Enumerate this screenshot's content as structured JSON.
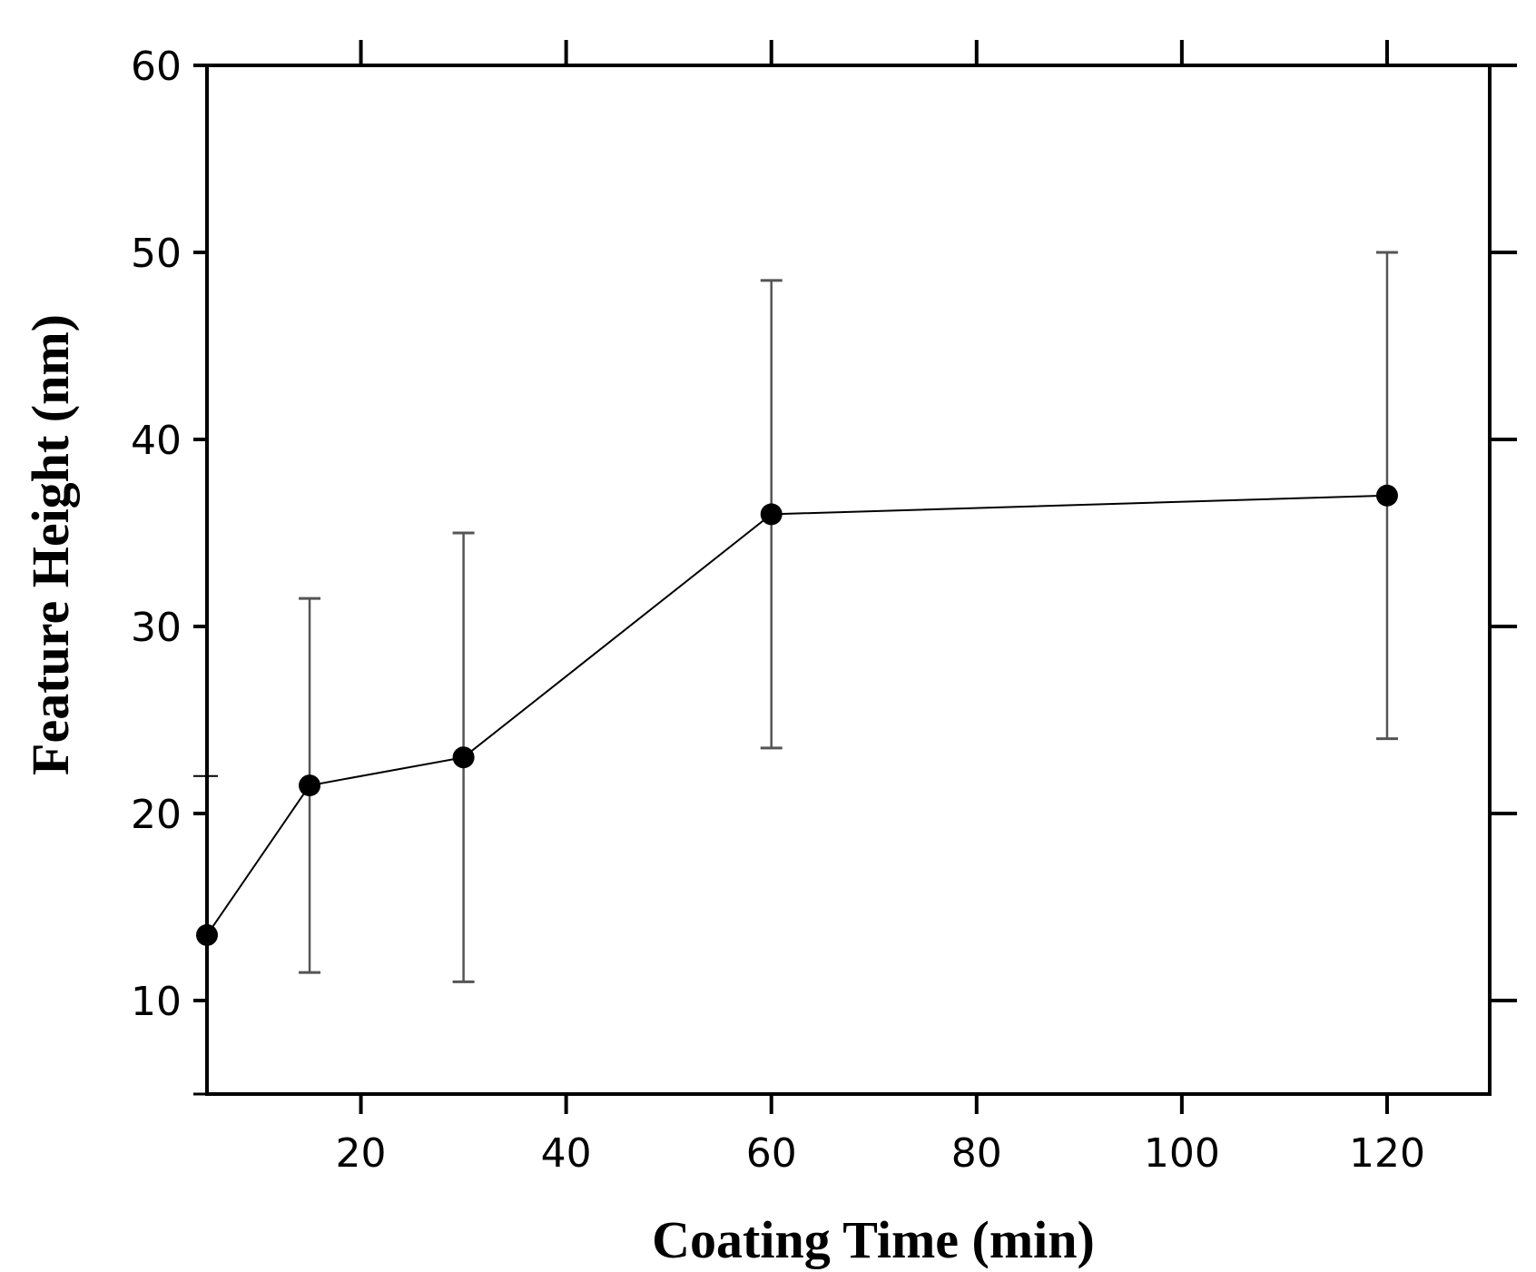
{
  "chart_data": {
    "type": "line",
    "title": "",
    "xlabel": "Coating Time (min)",
    "ylabel": "Feature Height (nm)",
    "xlim": [
      5,
      130
    ],
    "ylim": [
      5,
      60
    ],
    "xticks": [
      20,
      40,
      60,
      80,
      100,
      120
    ],
    "yticks": [
      10,
      20,
      30,
      40,
      50,
      60
    ],
    "grid": false,
    "series": [
      {
        "name": "Feature Height",
        "color": "#000000",
        "points": [
          {
            "x": 5,
            "y": 13.5,
            "err_low": null,
            "err_high": null
          },
          {
            "x": 15,
            "y": 21.5,
            "err_low": 11.5,
            "err_high": 31.5
          },
          {
            "x": 30,
            "y": 23,
            "err_low": 11,
            "err_high": 35
          },
          {
            "x": 60,
            "y": 36,
            "err_low": 23.5,
            "err_high": 48.5
          },
          {
            "x": 120,
            "y": 37,
            "err_low": 24,
            "err_high": 50
          }
        ]
      }
    ]
  }
}
